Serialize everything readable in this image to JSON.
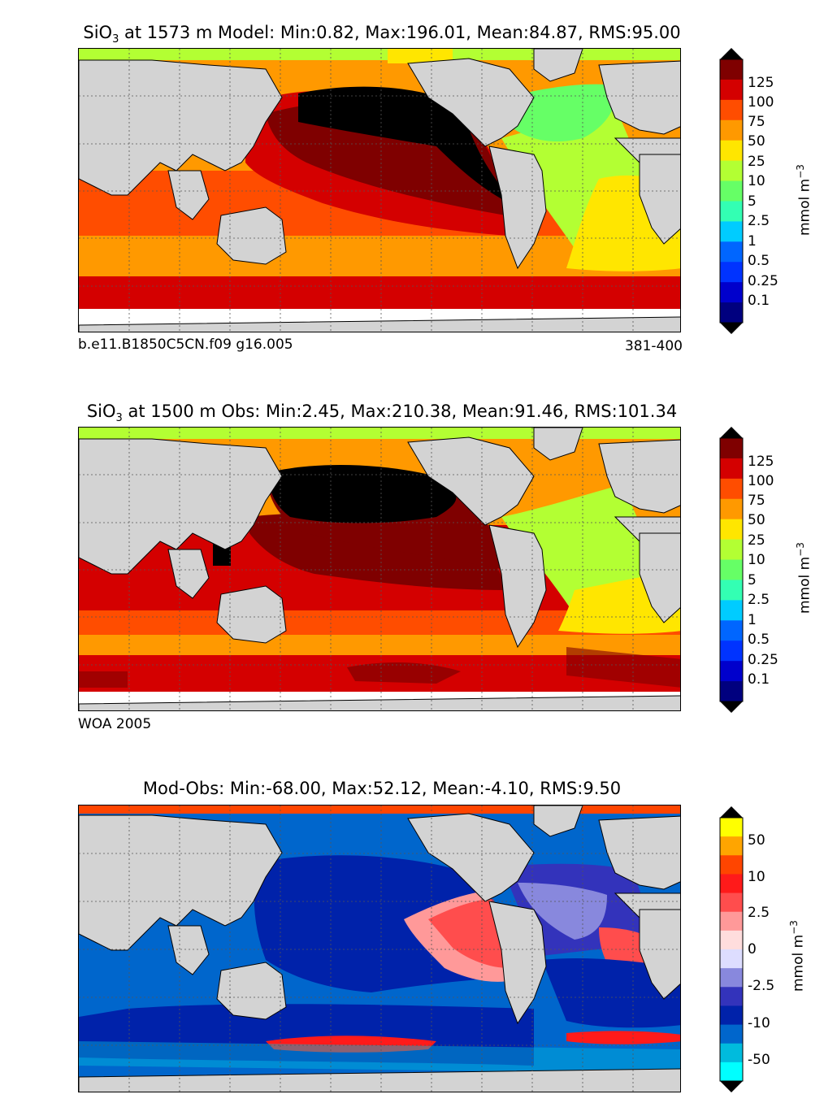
{
  "panels": [
    {
      "id": "model",
      "title_species": "SiO",
      "title_sub": "3",
      "title_rest": " at 1573 m Model: Min:0.82, Max:196.01, Mean:84.87, RMS:95.00",
      "left_label": "b.e11.B1850C5CN.f09 g16.005",
      "right_label": "381-400",
      "colorbar": {
        "ticks": [
          "125",
          "100",
          "75",
          "50",
          "25",
          "10",
          "5",
          "2.5",
          "1",
          "0.5",
          "0.25",
          "0.1"
        ],
        "units": "mmol m",
        "units_sup": "−3",
        "colors": [
          "#7f0000",
          "#d40000",
          "#ff4d00",
          "#ff9900",
          "#ffe600",
          "#b3ff33",
          "#66ff66",
          "#33ffb3",
          "#00ccff",
          "#0066ff",
          "#0033ff",
          "#0000cc",
          "#00007f"
        ]
      }
    },
    {
      "id": "obs",
      "title_species": "SiO",
      "title_sub": "3",
      "title_rest": " at 1500 m Obs: Min:2.45, Max:210.38, Mean:91.46, RMS:101.34",
      "left_label": "WOA 2005",
      "colorbar": {
        "ticks": [
          "125",
          "100",
          "75",
          "50",
          "25",
          "10",
          "5",
          "2.5",
          "1",
          "0.5",
          "0.25",
          "0.1"
        ],
        "units": "mmol m",
        "units_sup": "−3",
        "colors": [
          "#7f0000",
          "#d40000",
          "#ff4d00",
          "#ff9900",
          "#ffe600",
          "#b3ff33",
          "#66ff66",
          "#33ffb3",
          "#00ccff",
          "#0066ff",
          "#0033ff",
          "#0000cc",
          "#00007f"
        ]
      }
    },
    {
      "id": "diff",
      "title_rest": "Mod-Obs: Min:-68.00, Max:52.12, Mean:-4.10, RMS:9.50",
      "colorbar": {
        "ticks": [
          "50",
          "10",
          "2.5",
          "0",
          "-2.5",
          "-10",
          "-50"
        ],
        "units": "mmol m",
        "units_sup": "−3",
        "colors": [
          "#ffff00",
          "#ffa500",
          "#ff4500",
          "#ff1a1a",
          "#ff4d4d",
          "#ff9999",
          "#ffdddd",
          "#ddddff",
          "#8888dd",
          "#3333bb",
          "#0022aa",
          "#0066cc",
          "#00bbdd",
          "#00ffff"
        ]
      }
    }
  ]
}
